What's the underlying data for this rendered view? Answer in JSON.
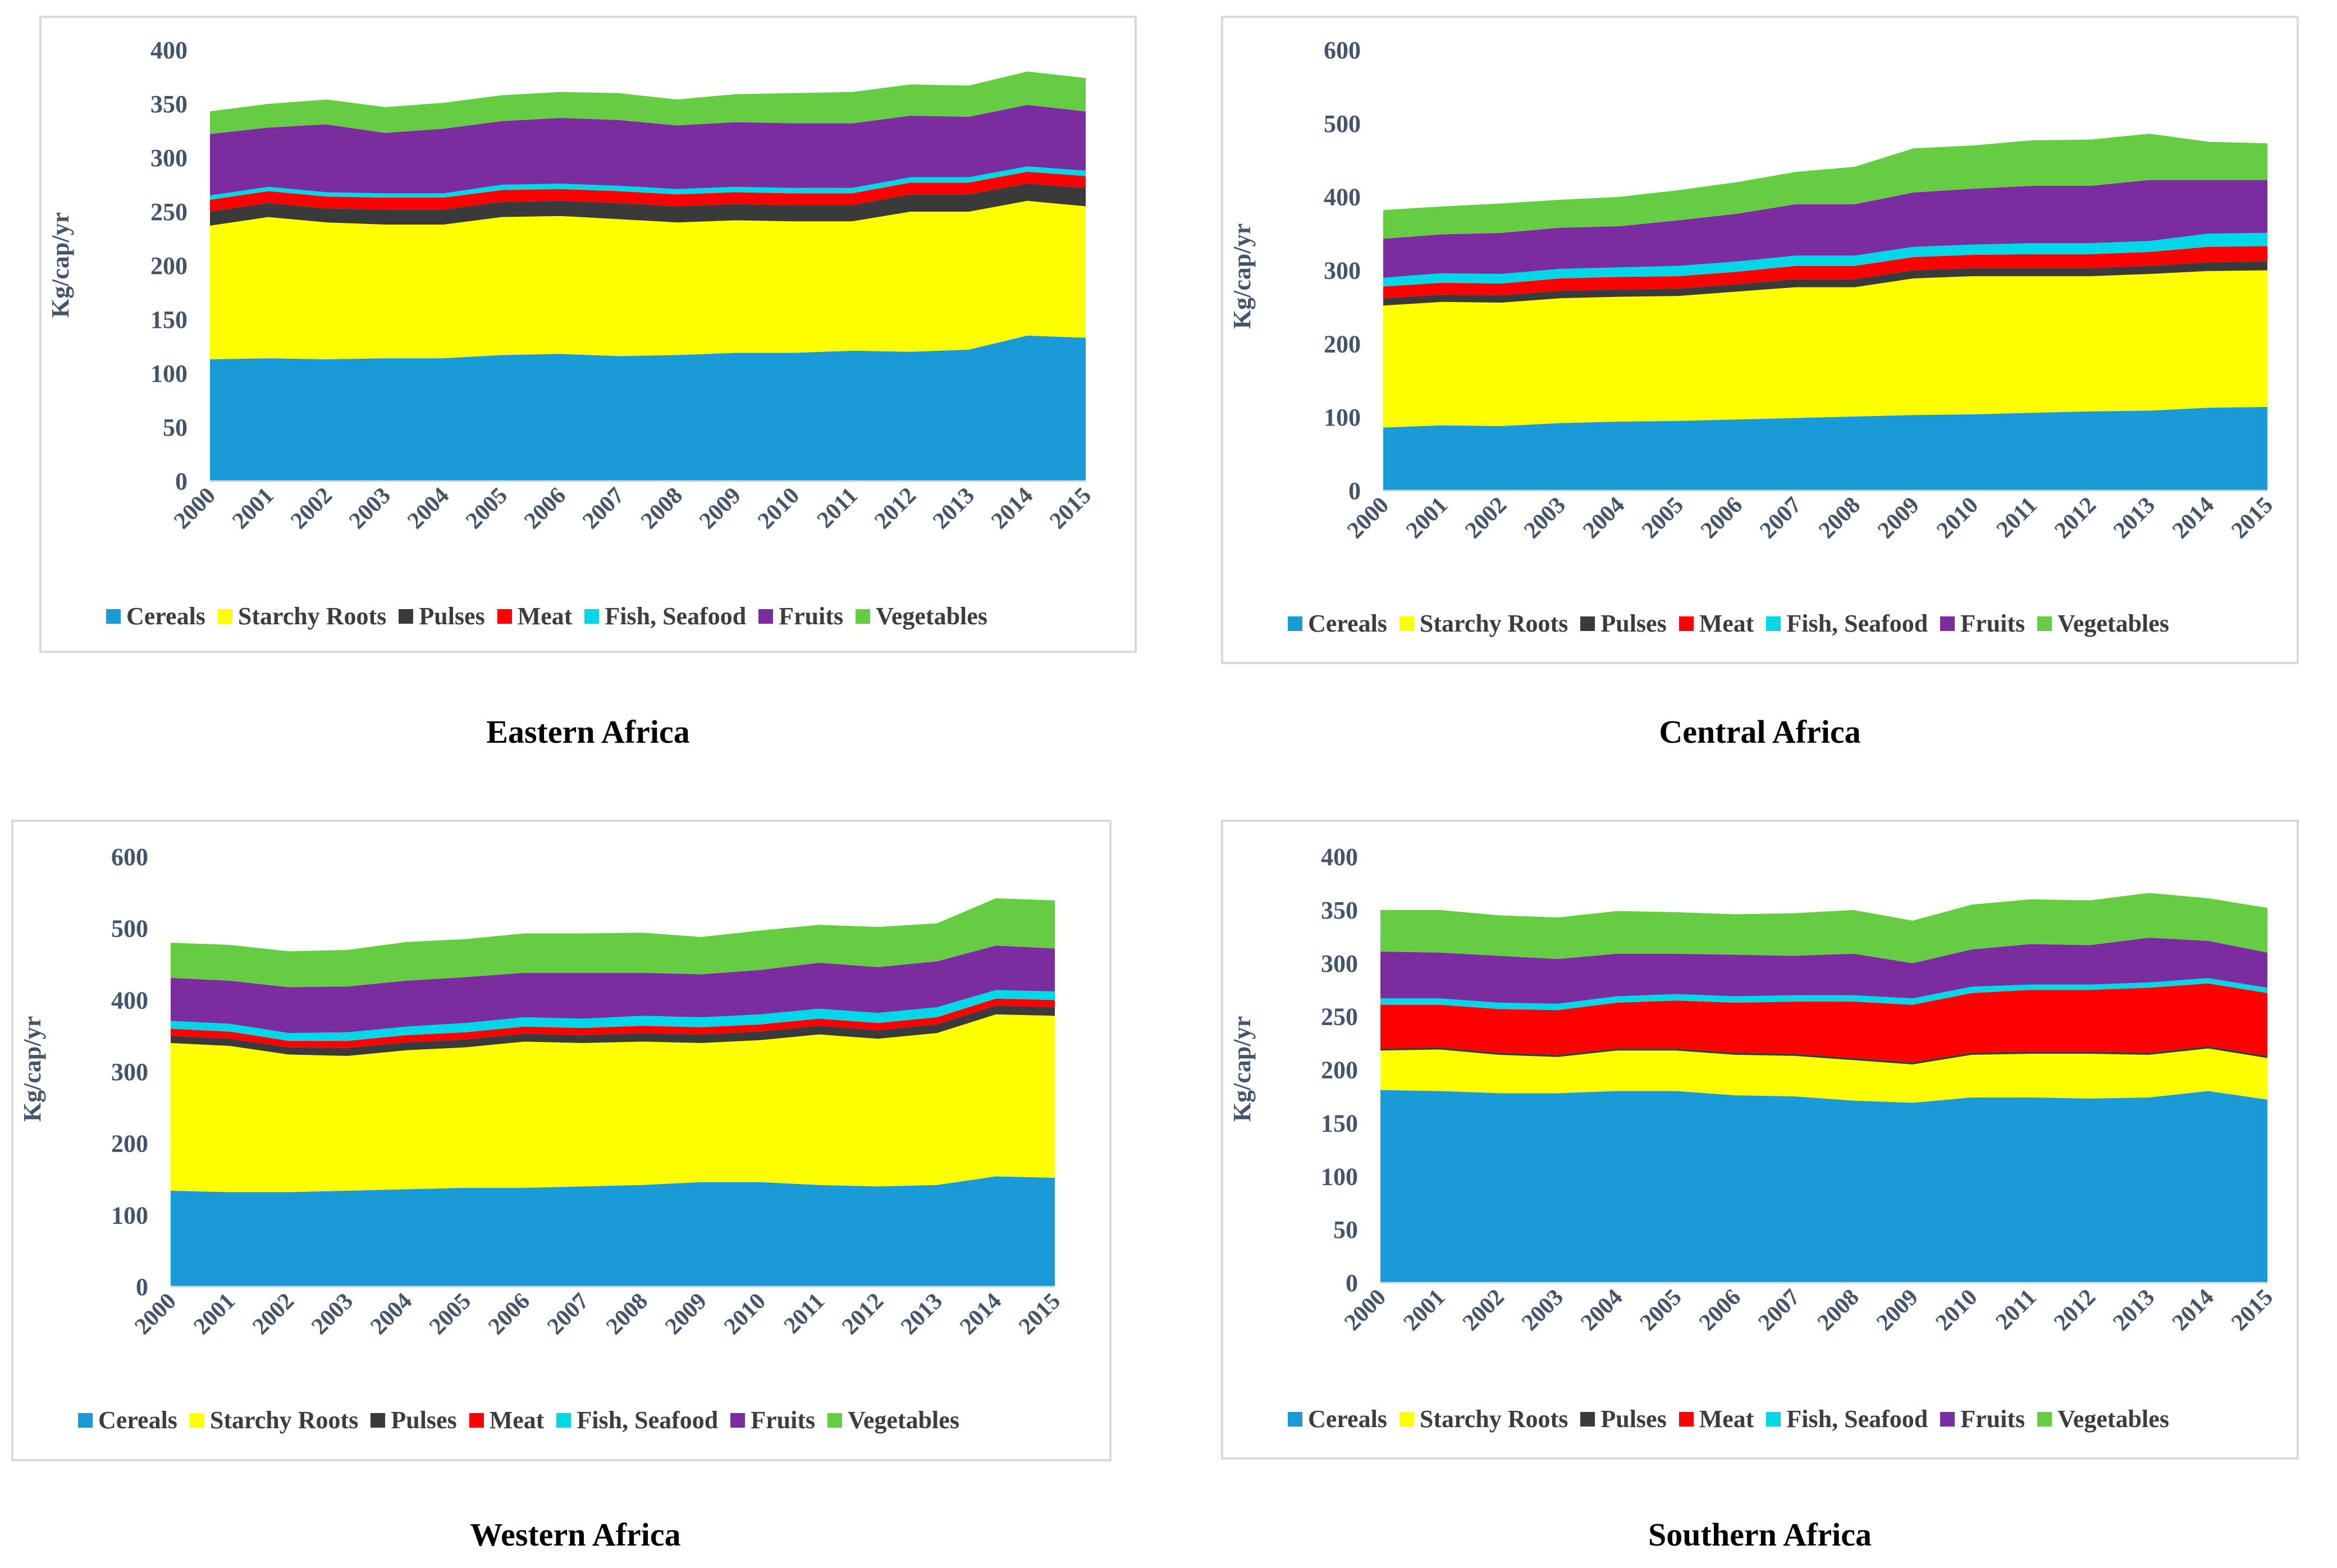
{
  "figure": {
    "captions": [
      "Eastern Africa",
      "Central Africa",
      "Western Africa",
      "Southern Africa"
    ]
  },
  "legend_labels": [
    "Cereals",
    "Starchy Roots",
    "Pulses",
    "Meat",
    "Fish, Seafood",
    "Fruits",
    "Vegetables"
  ],
  "colors": {
    "Cereals": "#1a9ad6",
    "Starchy Roots": "#ffff00",
    "Pulses": "#3a3a3a",
    "Meat": "#ff0000",
    "Fish, Seafood": "#00d8e8",
    "Fruits": "#7b2da0",
    "Vegetables": "#66cc44"
  },
  "chart_data": [
    {
      "type": "area",
      "stacked": true,
      "title": "Eastern Africa",
      "ylabel": "Kg/cap/yr",
      "xlabel": "",
      "ylim": [
        0,
        400
      ],
      "yticks": [
        0,
        50,
        100,
        150,
        200,
        250,
        300,
        350,
        400
      ],
      "categories": [
        "2000",
        "2001",
        "2002",
        "2003",
        "2004",
        "2005",
        "2006",
        "2007",
        "2008",
        "2009",
        "2010",
        "2011",
        "2012",
        "2013",
        "2014",
        "2015"
      ],
      "series": [
        {
          "name": "Cereals",
          "values": [
            113,
            114,
            113,
            114,
            114,
            117,
            118,
            116,
            117,
            119,
            119,
            121,
            120,
            122,
            135,
            133
          ]
        },
        {
          "name": "Starchy Roots",
          "values": [
            124,
            131,
            127,
            124,
            124,
            128,
            128,
            127,
            123,
            123,
            122,
            120,
            130,
            128,
            125,
            122
          ]
        },
        {
          "name": "Pulses",
          "values": [
            13,
            13,
            13,
            14,
            14,
            14,
            14,
            15,
            15,
            15,
            15,
            15,
            16,
            16,
            16,
            17
          ]
        },
        {
          "name": "Meat",
          "values": [
            11,
            11,
            11,
            11,
            11,
            11,
            11,
            11,
            11,
            11,
            11,
            11,
            11,
            11,
            11,
            11
          ]
        },
        {
          "name": "Fish, Seafood",
          "values": [
            4,
            4,
            4,
            4,
            4,
            5,
            5,
            5,
            5,
            5,
            5,
            5,
            5,
            5,
            5,
            5
          ]
        },
        {
          "name": "Fruits",
          "values": [
            57,
            55,
            63,
            56,
            60,
            59,
            61,
            61,
            59,
            60,
            60,
            60,
            57,
            56,
            57,
            55
          ]
        },
        {
          "name": "Vegetables",
          "values": [
            21,
            22,
            23,
            24,
            24,
            24,
            24,
            25,
            24,
            26,
            28,
            29,
            29,
            29,
            31,
            31
          ]
        }
      ]
    },
    {
      "type": "area",
      "stacked": true,
      "title": "Central Africa",
      "ylabel": "Kg/cap/yr",
      "xlabel": "",
      "ylim": [
        0,
        600
      ],
      "yticks": [
        0,
        100,
        200,
        300,
        400,
        500,
        600
      ],
      "categories": [
        "2000",
        "2001",
        "2002",
        "2003",
        "2004",
        "2005",
        "2006",
        "2007",
        "2008",
        "2009",
        "2010",
        "2011",
        "2012",
        "2013",
        "2014",
        "2015"
      ],
      "series": [
        {
          "name": "Cereals",
          "values": [
            86,
            89,
            88,
            92,
            94,
            95,
            97,
            99,
            101,
            103,
            104,
            106,
            108,
            109,
            113,
            114
          ]
        },
        {
          "name": "Starchy Roots",
          "values": [
            166,
            168,
            168,
            170,
            170,
            170,
            174,
            178,
            176,
            186,
            188,
            186,
            184,
            186,
            186,
            186
          ]
        },
        {
          "name": "Pulses",
          "values": [
            10,
            10,
            10,
            10,
            10,
            10,
            10,
            11,
            11,
            11,
            11,
            11,
            11,
            11,
            12,
            12
          ]
        },
        {
          "name": "Meat",
          "values": [
            16,
            16,
            16,
            17,
            17,
            17,
            17,
            18,
            18,
            18,
            18,
            19,
            19,
            19,
            21,
            21
          ]
        },
        {
          "name": "Fish, Seafood",
          "values": [
            12,
            13,
            13,
            13,
            13,
            14,
            14,
            14,
            14,
            14,
            14,
            15,
            15,
            15,
            18,
            18
          ]
        },
        {
          "name": "Fruits",
          "values": [
            53,
            53,
            56,
            56,
            56,
            62,
            65,
            70,
            70,
            74,
            76,
            78,
            78,
            83,
            73,
            72
          ]
        },
        {
          "name": "Vegetables",
          "values": [
            39,
            38,
            40,
            38,
            40,
            41,
            43,
            44,
            51,
            60,
            59,
            62,
            63,
            63,
            52,
            50
          ]
        }
      ]
    },
    {
      "type": "area",
      "stacked": true,
      "title": "Western Africa",
      "ylabel": "Kg/cap/yr",
      "xlabel": "",
      "ylim": [
        0,
        600
      ],
      "yticks": [
        0,
        100,
        200,
        300,
        400,
        500,
        600
      ],
      "categories": [
        "2000",
        "2001",
        "2002",
        "2003",
        "2004",
        "2005",
        "2006",
        "2007",
        "2008",
        "2009",
        "2010",
        "2011",
        "2012",
        "2013",
        "2014",
        "2015"
      ],
      "series": [
        {
          "name": "Cereals",
          "values": [
            134,
            132,
            132,
            134,
            136,
            138,
            138,
            140,
            142,
            146,
            146,
            142,
            140,
            142,
            154,
            152
          ]
        },
        {
          "name": "Starchy Roots",
          "values": [
            206,
            204,
            192,
            188,
            194,
            196,
            204,
            200,
            200,
            194,
            198,
            210,
            206,
            212,
            226,
            226
          ]
        },
        {
          "name": "Pulses",
          "values": [
            10,
            10,
            10,
            11,
            11,
            11,
            11,
            11,
            12,
            12,
            12,
            12,
            12,
            12,
            12,
            12
          ]
        },
        {
          "name": "Meat",
          "values": [
            10,
            10,
            9,
            10,
            10,
            10,
            10,
            10,
            10,
            10,
            10,
            10,
            10,
            10,
            10,
            10
          ]
        },
        {
          "name": "Fish, Seafood",
          "values": [
            11,
            11,
            11,
            12,
            12,
            13,
            13,
            13,
            14,
            14,
            14,
            14,
            14,
            14,
            12,
            12
          ]
        },
        {
          "name": "Fruits",
          "values": [
            60,
            60,
            64,
            64,
            64,
            64,
            62,
            64,
            60,
            60,
            62,
            64,
            64,
            64,
            62,
            60
          ]
        },
        {
          "name": "Vegetables",
          "values": [
            49,
            50,
            50,
            51,
            54,
            53,
            55,
            55,
            56,
            52,
            55,
            53,
            56,
            53,
            66,
            67
          ]
        }
      ]
    },
    {
      "type": "area",
      "stacked": true,
      "title": "Southern Africa",
      "ylabel": "Kg/cap/yr",
      "xlabel": "",
      "ylim": [
        0,
        400
      ],
      "yticks": [
        0,
        50,
        100,
        150,
        200,
        250,
        300,
        350,
        400
      ],
      "categories": [
        "2000",
        "2001",
        "2002",
        "2003",
        "2004",
        "2005",
        "2006",
        "2007",
        "2008",
        "2009",
        "2010",
        "2011",
        "2012",
        "2013",
        "2014",
        "2015"
      ],
      "series": [
        {
          "name": "Cereals",
          "values": [
            181,
            180,
            178,
            178,
            180,
            180,
            176,
            175,
            171,
            169,
            174,
            174,
            173,
            174,
            180,
            172
          ]
        },
        {
          "name": "Starchy Roots",
          "values": [
            37,
            39,
            36,
            34,
            38,
            38,
            38,
            38,
            38,
            36,
            40,
            41,
            42,
            40,
            40,
            39
          ]
        },
        {
          "name": "Pulses",
          "values": [
            2,
            2,
            2,
            2,
            2,
            2,
            2,
            2,
            2,
            2,
            2,
            2,
            2,
            2,
            2,
            2
          ]
        },
        {
          "name": "Meat",
          "values": [
            41,
            40,
            41,
            42,
            43,
            45,
            47,
            49,
            53,
            54,
            56,
            58,
            58,
            61,
            59,
            59
          ]
        },
        {
          "name": "Fish, Seafood",
          "values": [
            6,
            6,
            6,
            6,
            6,
            6,
            6,
            6,
            6,
            6,
            6,
            5,
            5,
            5,
            5,
            5
          ]
        },
        {
          "name": "Fruits",
          "values": [
            44,
            43,
            44,
            42,
            40,
            38,
            39,
            37,
            39,
            33,
            35,
            38,
            37,
            42,
            35,
            33
          ]
        },
        {
          "name": "Vegetables",
          "values": [
            39,
            40,
            38,
            39,
            40,
            39,
            38,
            40,
            41,
            40,
            42,
            42,
            42,
            42,
            40,
            42
          ]
        }
      ]
    }
  ]
}
